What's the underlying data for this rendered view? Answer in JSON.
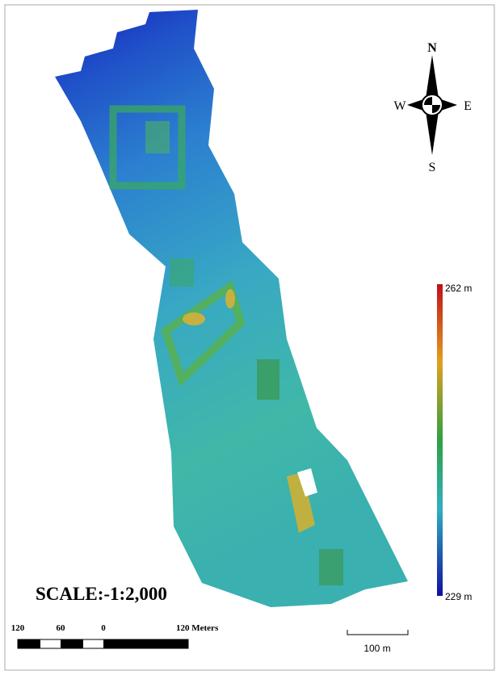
{
  "compass": {
    "north": "N",
    "south": "S",
    "west": "W",
    "east": "E"
  },
  "legend": {
    "max": "262 m",
    "min": "229 m"
  },
  "scale": {
    "text": "SCALE:-1:2,000",
    "bar_labels": [
      "120",
      "60",
      "0",
      "120 Meters"
    ],
    "bar_100": "100 m"
  }
}
